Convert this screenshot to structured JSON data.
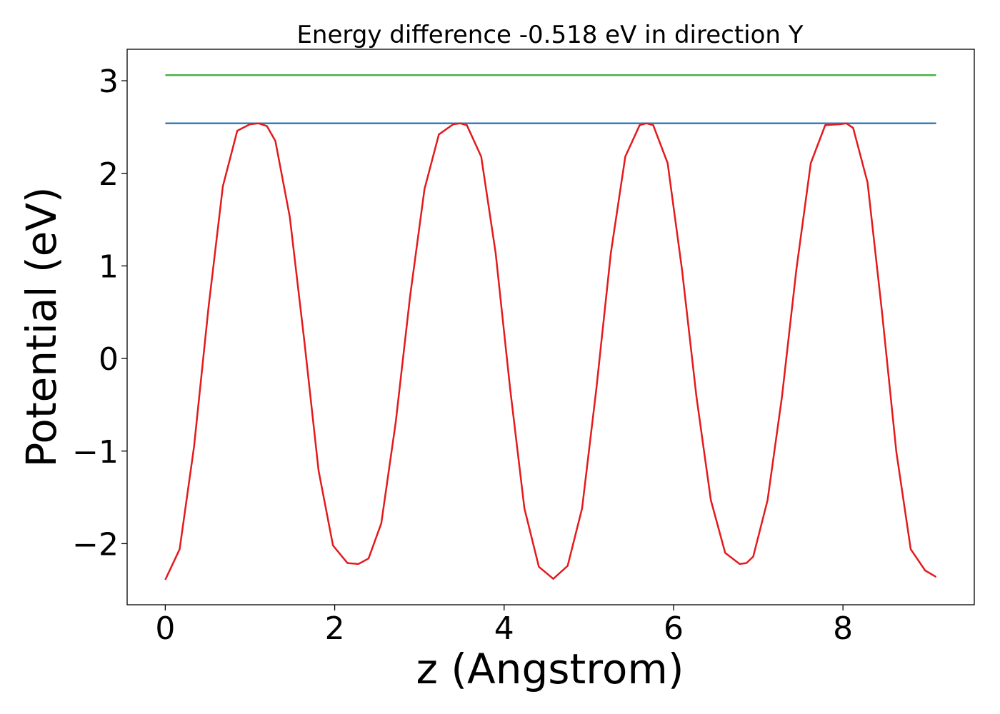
{
  "chart_data": {
    "type": "line",
    "title": "Energy difference -0.518 eV in direction Y",
    "xlabel": "z (Angstrom)",
    "ylabel": "Potential (eV)",
    "xlim": [
      -0.45,
      9.55
    ],
    "ylim": [
      -2.66,
      3.34
    ],
    "xticks": [
      0,
      2,
      4,
      6,
      8
    ],
    "xtick_labels": [
      "0",
      "2",
      "4",
      "6",
      "8"
    ],
    "yticks": [
      -2,
      -1,
      0,
      1,
      2,
      3
    ],
    "ytick_labels": [
      "−2",
      "−1",
      "0",
      "1",
      "2",
      "3"
    ],
    "grid": false,
    "legend": "none",
    "series": [
      {
        "x": [
          0,
          9.1
        ],
        "y": [
          3.06,
          3.06
        ],
        "color": "#4daf4a",
        "style": "line"
      },
      {
        "x": [
          0,
          9.1
        ],
        "y": [
          2.54,
          2.54
        ],
        "color": "#377eb8",
        "style": "line"
      },
      {
        "color": "#e41a1c",
        "style": "line",
        "x": [
          0.0,
          0.17,
          0.34,
          0.51,
          0.68,
          0.85,
          1.0,
          1.1,
          1.2,
          1.3,
          1.47,
          1.64,
          1.81,
          1.98,
          2.15,
          2.28,
          2.4,
          2.55,
          2.72,
          2.89,
          3.06,
          3.23,
          3.4,
          3.48,
          3.56,
          3.73,
          3.9,
          4.07,
          4.24,
          4.41,
          4.58,
          4.75,
          4.92,
          5.09,
          5.26,
          5.43,
          5.6,
          5.68,
          5.76,
          5.93,
          6.1,
          6.27,
          6.44,
          6.61,
          6.78,
          6.86,
          6.94,
          7.11,
          7.28,
          7.45,
          7.62,
          7.79,
          7.96,
          8.04,
          8.12,
          8.29,
          8.46,
          8.63,
          8.8,
          8.97,
          9.1
        ],
        "y": [
          -2.39,
          -2.06,
          -0.95,
          0.55,
          1.86,
          2.46,
          2.53,
          2.54,
          2.51,
          2.35,
          1.53,
          0.2,
          -1.21,
          -2.02,
          -2.21,
          -2.22,
          -2.16,
          -1.78,
          -0.69,
          0.67,
          1.83,
          2.42,
          2.53,
          2.54,
          2.52,
          2.18,
          1.14,
          -0.32,
          -1.62,
          -2.25,
          -2.38,
          -2.24,
          -1.62,
          -0.32,
          1.14,
          2.18,
          2.52,
          2.54,
          2.52,
          2.11,
          0.96,
          -0.41,
          -1.53,
          -2.1,
          -2.22,
          -2.21,
          -2.14,
          -1.53,
          -0.41,
          0.96,
          2.11,
          2.52,
          2.53,
          2.54,
          2.49,
          1.9,
          0.51,
          -1.01,
          -2.06,
          -2.29,
          -2.36
        ]
      }
    ]
  }
}
